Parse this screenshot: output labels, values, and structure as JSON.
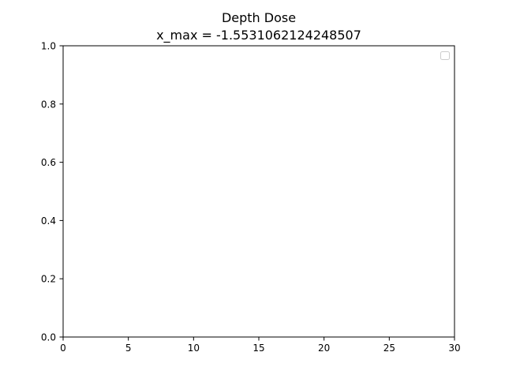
{
  "chart_data": {
    "type": "line",
    "title": "Depth Dose",
    "subtitle": "x_max = -1.5531062124248507",
    "xlabel": "",
    "ylabel": "",
    "xlim": [
      0,
      30
    ],
    "ylim": [
      0,
      1
    ],
    "x_ticks": [
      "0",
      "5",
      "10",
      "15",
      "20",
      "25",
      "30"
    ],
    "y_ticks": [
      "0.0",
      "0.2",
      "0.4",
      "0.6",
      "0.8",
      "1.0"
    ],
    "grid": false,
    "legend": "top-right",
    "series": []
  }
}
